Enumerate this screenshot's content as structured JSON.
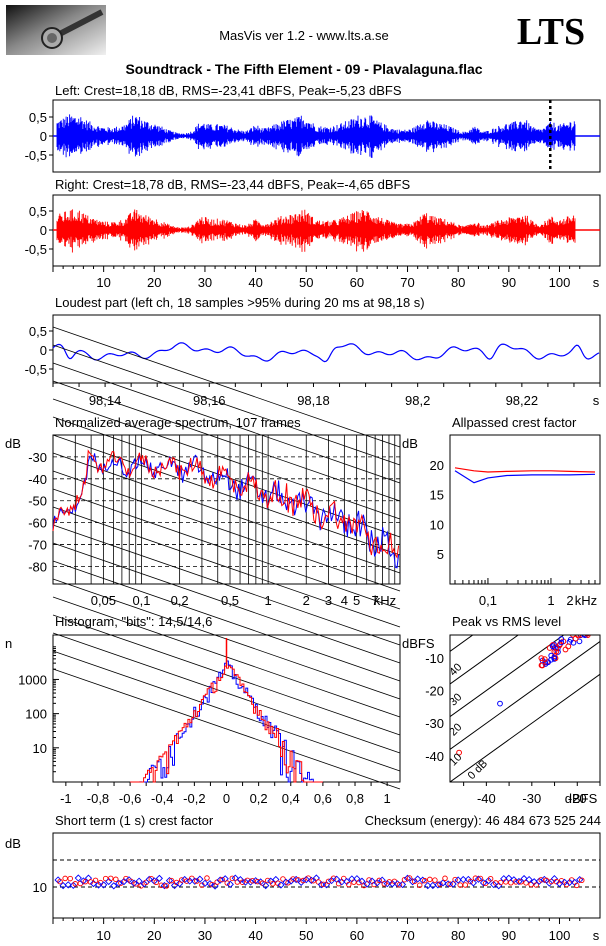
{
  "header": {
    "version": "MasVis ver 1.2 - www.lts.a.se",
    "logo": "LTS",
    "track": "Soundtrack - The Fifth Element - 09 - Plavalaguna.flac",
    "photo": "microphone-photo"
  },
  "chart_data": [
    {
      "id": "left",
      "type": "line",
      "title": "Left: Crest=18,18 dB, RMS=-23,41 dBFS, Peak=-5,23 dBFS",
      "yticks": [
        "0,5",
        "0",
        "-0,5"
      ],
      "ylim": [
        -1,
        1
      ],
      "color": "#0000ff",
      "loudest_marker_s": 98.18
    },
    {
      "id": "right",
      "type": "line",
      "title": "Right: Crest=18,78 dB, RMS=-23,44 dBFS, Peak=-4,65 dBFS",
      "yticks": [
        "0,5",
        "0",
        "-0,5"
      ],
      "ylim": [
        -1,
        1
      ],
      "xticks": [
        "10",
        "20",
        "30",
        "40",
        "50",
        "60",
        "70",
        "80",
        "90",
        "100"
      ],
      "xunit": "s",
      "xlim": [
        0,
        108
      ],
      "color": "#ff0000"
    },
    {
      "id": "loudest",
      "type": "line",
      "title": "Loudest part (left  ch, 18 samples >95% during 20 ms at 98,18 s)",
      "yticks": [
        "0,5",
        "0",
        "-0,5"
      ],
      "xticks": [
        "98,14",
        "98,16",
        "98,18",
        "98,2",
        "98,22"
      ],
      "xunit": "s",
      "xlim": [
        98.13,
        98.235
      ],
      "color": "#0000ff"
    },
    {
      "id": "spectrum",
      "type": "line",
      "title": "Normalized average spectrum, 107 frames",
      "ylabel": "dB",
      "yticks": [
        "-30",
        "-40",
        "-50",
        "-60",
        "-70",
        "-80"
      ],
      "xticks": [
        "0,05",
        "0,1",
        "0,2",
        "0,5",
        "1",
        "2",
        "3",
        "4",
        "5",
        "7"
      ],
      "xunit": "kHz"
    },
    {
      "id": "allpass",
      "type": "line",
      "title": "Allpassed crest factor",
      "ylabel": "dB",
      "yticks": [
        "20",
        "15",
        "10",
        "5"
      ],
      "xticks": [
        "0,1",
        "1",
        "2"
      ],
      "xunit": "kHz",
      "series": [
        {
          "color": "#ff0000",
          "values": [
            19.5,
            19.0,
            18.8,
            18.9,
            19.0,
            19.0,
            18.9,
            18.8
          ]
        },
        {
          "color": "#0000ff",
          "values": [
            19.0,
            17.0,
            17.8,
            18.2,
            18.3,
            18.3,
            18.3,
            18.4
          ]
        }
      ]
    },
    {
      "id": "histogram",
      "type": "line",
      "title": "Histogram, \"bits\": 14,5/14,6",
      "ylabel": "n",
      "yticks": [
        "1000",
        "100",
        "10"
      ],
      "xticks": [
        "-1",
        "-0,8",
        "-0,6",
        "-0,4",
        "-0,2",
        "0",
        "0,2",
        "0,4",
        "0,6",
        "0,8",
        "1"
      ]
    },
    {
      "id": "peakrms",
      "type": "scatter",
      "title": "Peak vs RMS level",
      "ylabel": "dBFS",
      "yticks": [
        "-10",
        "-20",
        "-30",
        "-40"
      ],
      "xticks": [
        "-40",
        "-30",
        "-20"
      ],
      "xunit": "dBFS",
      "diag_labels": [
        "40",
        "30",
        "20",
        "10",
        "0 dB"
      ]
    },
    {
      "id": "shortcrest",
      "type": "scatter",
      "title": "Short term (1 s) crest factor",
      "checksum": "Checksum (energy):   46 484 673 525 244",
      "ylabel": "dB",
      "yticks": [
        "10"
      ],
      "xticks": [
        "10",
        "20",
        "30",
        "40",
        "50",
        "60",
        "70",
        "80",
        "90",
        "100"
      ],
      "xunit": "s"
    }
  ]
}
